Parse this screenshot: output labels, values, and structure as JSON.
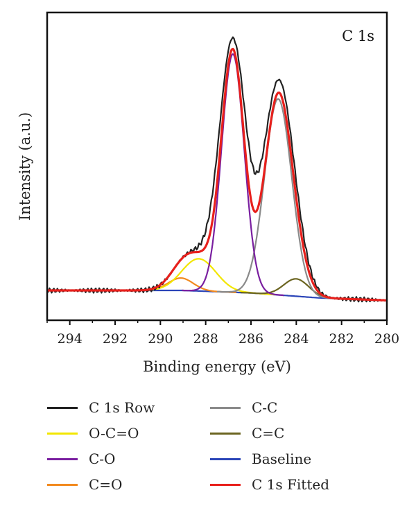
{
  "chart_data": {
    "type": "line",
    "title": "C 1s",
    "xlabel": "Binding energy (eV)",
    "ylabel": "Intensity (a.u.)",
    "xlim": [
      295,
      280
    ],
    "x_reversed": true,
    "ylim": [
      -0.12,
      1.12
    ],
    "y_ticks_shown": false,
    "xticks": [
      294,
      292,
      290,
      288,
      286,
      284,
      282,
      280
    ],
    "grid": false,
    "legend_placement": "below",
    "series": [
      {
        "name": "C 1s Row",
        "color": "#222222",
        "peaks": [
          [
            286.8,
            1.0,
            0.58
          ],
          [
            284.8,
            0.84,
            0.65
          ],
          [
            288.3,
            0.13,
            0.75
          ],
          [
            289.1,
            0.05,
            0.55
          ],
          [
            284.0,
            0.07,
            0.55
          ]
        ]
      },
      {
        "name": "O-C=O",
        "color": "#f2e600",
        "peaks": [
          [
            288.3,
            0.13,
            0.75
          ]
        ]
      },
      {
        "name": "C-O",
        "color": "#7a1fa0",
        "peaks": [
          [
            286.8,
            0.96,
            0.5
          ]
        ]
      },
      {
        "name": "C=O",
        "color": "#f28a1e",
        "peaks": [
          [
            289.1,
            0.05,
            0.55
          ]
        ]
      },
      {
        "name": "C-C",
        "color": "#8a8a8a",
        "peaks": [
          [
            284.8,
            0.79,
            0.6
          ]
        ]
      },
      {
        "name": "C=C",
        "color": "#6b6420",
        "peaks": [
          [
            284.0,
            0.07,
            0.55
          ]
        ]
      },
      {
        "name": "Baseline",
        "color": "#2b45b8",
        "baseline": [
          [
            295,
            0.0
          ],
          [
            289,
            0.0
          ],
          [
            286,
            -0.01
          ],
          [
            283,
            -0.03
          ],
          [
            280,
            -0.04
          ]
        ]
      },
      {
        "name": "C 1s Fitted",
        "color": "#e8201c",
        "peaks": [
          [
            286.8,
            0.96,
            0.5
          ],
          [
            284.8,
            0.79,
            0.6
          ],
          [
            288.3,
            0.13,
            0.75
          ],
          [
            289.1,
            0.05,
            0.55
          ],
          [
            284.0,
            0.07,
            0.55
          ]
        ]
      }
    ]
  }
}
